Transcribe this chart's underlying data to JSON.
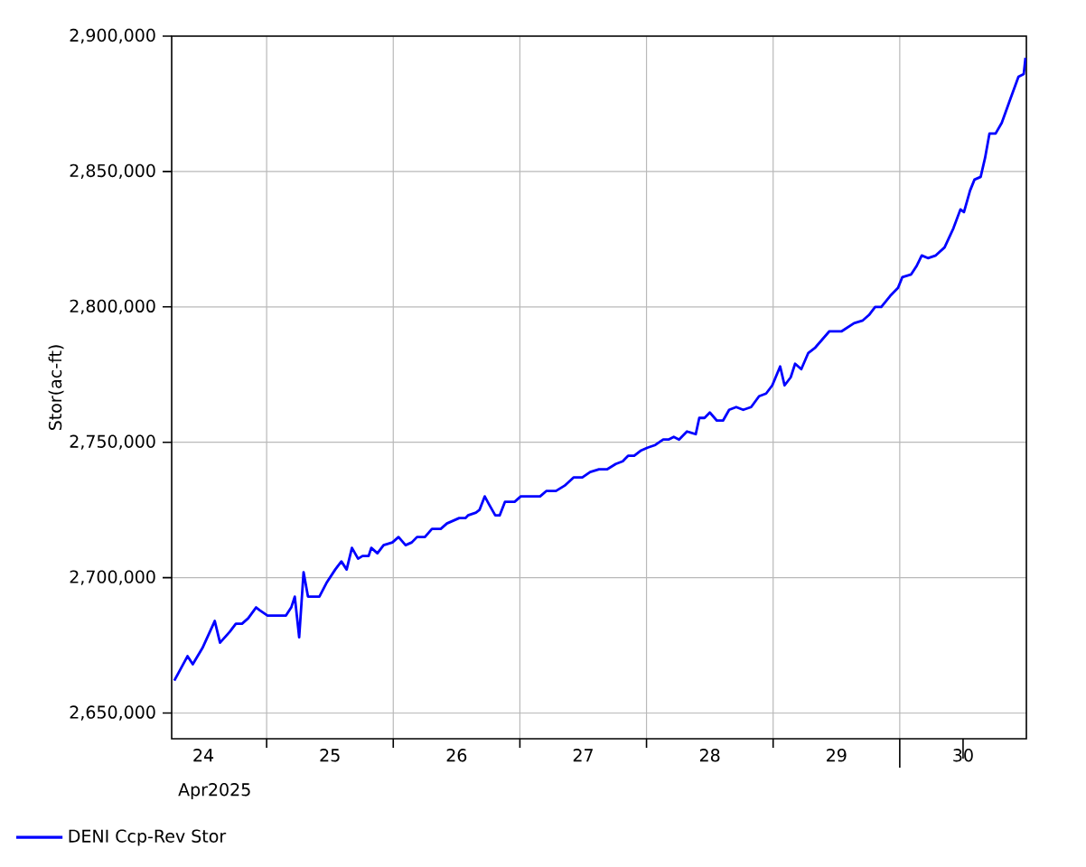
{
  "chart_data": {
    "type": "line",
    "ylabel": "Stor(ac-ft)",
    "xlabel": "Apr2025",
    "x": [
      "2025-04-24T06:30",
      "2025-04-24T07:20",
      "2025-04-24T09:00",
      "2025-04-24T10:00",
      "2025-04-24T11:50",
      "2025-04-24T13:00",
      "2025-04-24T14:10",
      "2025-04-24T15:10",
      "2025-04-24T17:00",
      "2025-04-24T18:10",
      "2025-04-24T19:20",
      "2025-04-24T20:30",
      "2025-04-24T22:00",
      "2025-04-24T22:40",
      "2025-04-25T00:10",
      "2025-04-25T02:40",
      "2025-04-25T03:40",
      "2025-04-25T04:40",
      "2025-04-25T05:20",
      "2025-04-25T06:10",
      "2025-04-25T07:00",
      "2025-04-25T07:50",
      "2025-04-25T10:00",
      "2025-04-25T11:20",
      "2025-04-25T13:00",
      "2025-04-25T14:10",
      "2025-04-25T15:10",
      "2025-04-25T16:10",
      "2025-04-25T17:20",
      "2025-04-25T18:10",
      "2025-04-25T19:20",
      "2025-04-25T19:50",
      "2025-04-25T21:00",
      "2025-04-25T22:10",
      "2025-04-25T23:50",
      "2025-04-26T01:00",
      "2025-04-26T02:20",
      "2025-04-26T03:30",
      "2025-04-26T04:30",
      "2025-04-26T06:00",
      "2025-04-26T07:20",
      "2025-04-26T09:00",
      "2025-04-26T10:10",
      "2025-04-26T12:30",
      "2025-04-26T13:40",
      "2025-04-26T14:10",
      "2025-04-26T15:40",
      "2025-04-26T16:20",
      "2025-04-26T17:20",
      "2025-04-26T18:10",
      "2025-04-26T19:20",
      "2025-04-26T20:10",
      "2025-04-26T21:10",
      "2025-04-26T23:00",
      "2025-04-27T00:10",
      "2025-04-27T01:00",
      "2025-04-27T03:50",
      "2025-04-27T05:00",
      "2025-04-27T06:50",
      "2025-04-27T08:30",
      "2025-04-27T10:10",
      "2025-04-27T11:50",
      "2025-04-27T13:20",
      "2025-04-27T15:00",
      "2025-04-27T16:30",
      "2025-04-27T18:10",
      "2025-04-27T19:30",
      "2025-04-27T20:30",
      "2025-04-27T21:40",
      "2025-04-27T23:00",
      "2025-04-28T00:10",
      "2025-04-28T01:40",
      "2025-04-28T03:10",
      "2025-04-28T04:10",
      "2025-04-28T05:10",
      "2025-04-28T06:10",
      "2025-04-28T07:40",
      "2025-04-28T09:20",
      "2025-04-28T10:00",
      "2025-04-28T11:00",
      "2025-04-28T12:00",
      "2025-04-28T13:20",
      "2025-04-28T14:30",
      "2025-04-28T15:40",
      "2025-04-28T17:00",
      "2025-04-28T18:20",
      "2025-04-28T19:50",
      "2025-04-28T21:20",
      "2025-04-28T22:40",
      "2025-04-28T23:50",
      "2025-04-29T01:20",
      "2025-04-29T02:10",
      "2025-04-29T03:20",
      "2025-04-29T04:10",
      "2025-04-29T05:20",
      "2025-04-29T06:40",
      "2025-04-29T08:00",
      "2025-04-29T10:40",
      "2025-04-29T13:00",
      "2025-04-29T15:20",
      "2025-04-29T17:00",
      "2025-04-29T18:10",
      "2025-04-29T19:20",
      "2025-04-29T20:30",
      "2025-04-29T22:10",
      "2025-04-29T23:40",
      "2025-04-30T00:30",
      "2025-04-30T02:10",
      "2025-04-30T03:10",
      "2025-04-30T04:10",
      "2025-04-30T05:20",
      "2025-04-30T06:50",
      "2025-04-30T08:30",
      "2025-04-30T10:10",
      "2025-04-30T11:30",
      "2025-04-30T12:10",
      "2025-04-30T13:20",
      "2025-04-30T14:10",
      "2025-04-30T15:20",
      "2025-04-30T16:10",
      "2025-04-30T17:00",
      "2025-04-30T18:10",
      "2025-04-30T19:20",
      "2025-04-30T21:00",
      "2025-04-30T22:30",
      "2025-04-30T23:30",
      "2025-04-30T23:50"
    ],
    "series": [
      {
        "name": "DENI Ccp-Rev Stor",
        "color": "#0000ff",
        "values": [
          2662000,
          2665000,
          2671000,
          2668000,
          2674000,
          2679000,
          2684000,
          2676000,
          2680000,
          2683000,
          2683000,
          2685000,
          2689000,
          2688000,
          2686000,
          2686000,
          2686000,
          2689000,
          2693000,
          2678000,
          2702000,
          2693000,
          2693000,
          2698000,
          2703000,
          2706000,
          2703000,
          2711000,
          2707000,
          2708000,
          2708000,
          2711000,
          2709000,
          2712000,
          2713000,
          2715000,
          2712000,
          2713000,
          2715000,
          2715000,
          2718000,
          2718000,
          2720000,
          2722000,
          2722000,
          2723000,
          2724000,
          2725000,
          2730000,
          2727000,
          2723000,
          2723000,
          2728000,
          2728000,
          2730000,
          2730000,
          2730000,
          2732000,
          2732000,
          2734000,
          2737000,
          2737000,
          2739000,
          2740000,
          2740000,
          2742000,
          2743000,
          2745000,
          2745000,
          2747000,
          2748000,
          2749000,
          2751000,
          2751000,
          2752000,
          2751000,
          2754000,
          2753000,
          2759000,
          2759000,
          2761000,
          2758000,
          2758000,
          2762000,
          2763000,
          2762000,
          2763000,
          2767000,
          2768000,
          2771000,
          2778000,
          2771000,
          2774000,
          2779000,
          2777000,
          2783000,
          2785000,
          2791000,
          2791000,
          2794000,
          2795000,
          2797000,
          2800000,
          2800000,
          2804000,
          2807000,
          2811000,
          2812000,
          2815000,
          2819000,
          2818000,
          2819000,
          2822000,
          2829000,
          2836000,
          2835000,
          2843000,
          2847000,
          2848000,
          2855000,
          2864000,
          2864000,
          2868000,
          2877000,
          2885000,
          2886000,
          2892000
        ]
      }
    ],
    "xlim": [
      "2025-04-24T06:00",
      "2025-05-01T00:00"
    ],
    "xticks": [
      {
        "value": "2025-04-24T12:00",
        "label": "24"
      },
      {
        "value": "2025-04-25T00:00",
        "label": null
      },
      {
        "value": "2025-04-25T12:00",
        "label": "25"
      },
      {
        "value": "2025-04-26T00:00",
        "label": null
      },
      {
        "value": "2025-04-26T12:00",
        "label": "26"
      },
      {
        "value": "2025-04-27T00:00",
        "label": null
      },
      {
        "value": "2025-04-27T12:00",
        "label": "27"
      },
      {
        "value": "2025-04-28T00:00",
        "label": null
      },
      {
        "value": "2025-04-28T12:00",
        "label": "28"
      },
      {
        "value": "2025-04-29T00:00",
        "label": null
      },
      {
        "value": "2025-04-29T12:00",
        "label": "29"
      },
      {
        "value": "2025-04-30T00:00",
        "label": null
      },
      {
        "value": "2025-04-30T12:00",
        "label": "30"
      }
    ],
    "ylim": [
      2640500,
      2900000
    ],
    "yticks": [
      {
        "value": 2650000,
        "label": "2,650,000"
      },
      {
        "value": 2700000,
        "label": "2,700,000"
      },
      {
        "value": 2750000,
        "label": "2,750,000"
      },
      {
        "value": 2800000,
        "label": "2,800,000"
      },
      {
        "value": 2850000,
        "label": "2,850,000"
      },
      {
        "value": 2900000,
        "label": "2,900,000"
      }
    ],
    "grid": true,
    "legend": "bottom left",
    "line_style": "solid"
  }
}
